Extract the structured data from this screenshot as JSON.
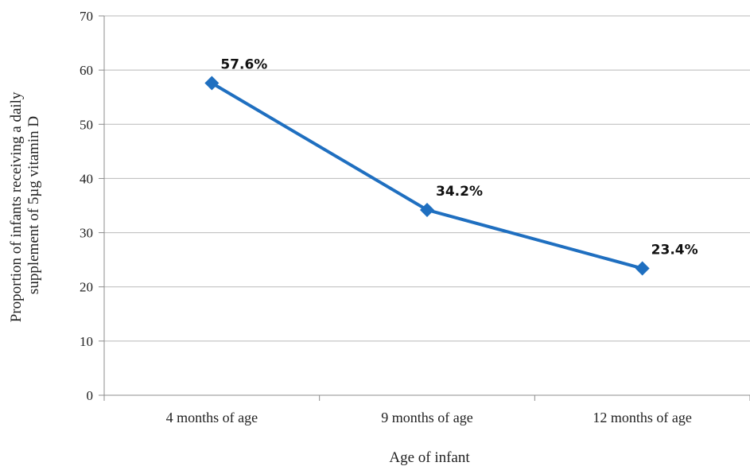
{
  "chart_data": {
    "type": "line",
    "categories": [
      "4 months of age",
      "9 months of age",
      "12 months of age"
    ],
    "series": [
      {
        "values": [
          57.6,
          34.2,
          23.4
        ],
        "data_labels": [
          "57.6%",
          "34.2%",
          "23.4%"
        ],
        "color": "#1f6fc0",
        "marker": "diamond"
      }
    ],
    "xlabel": "Age of infant",
    "ylabel_lines": [
      "Proportion of infants receiving a daily",
      "supplement of 5µg vitamin D"
    ],
    "ylim": [
      0,
      70
    ],
    "yticks": [
      0,
      10,
      20,
      30,
      40,
      50,
      60,
      70
    ],
    "grid": true,
    "legend": "none"
  },
  "colors": {
    "gridline": "#b9b9b9",
    "axis": "#8c8c8c",
    "series": "#1f6fc0"
  }
}
